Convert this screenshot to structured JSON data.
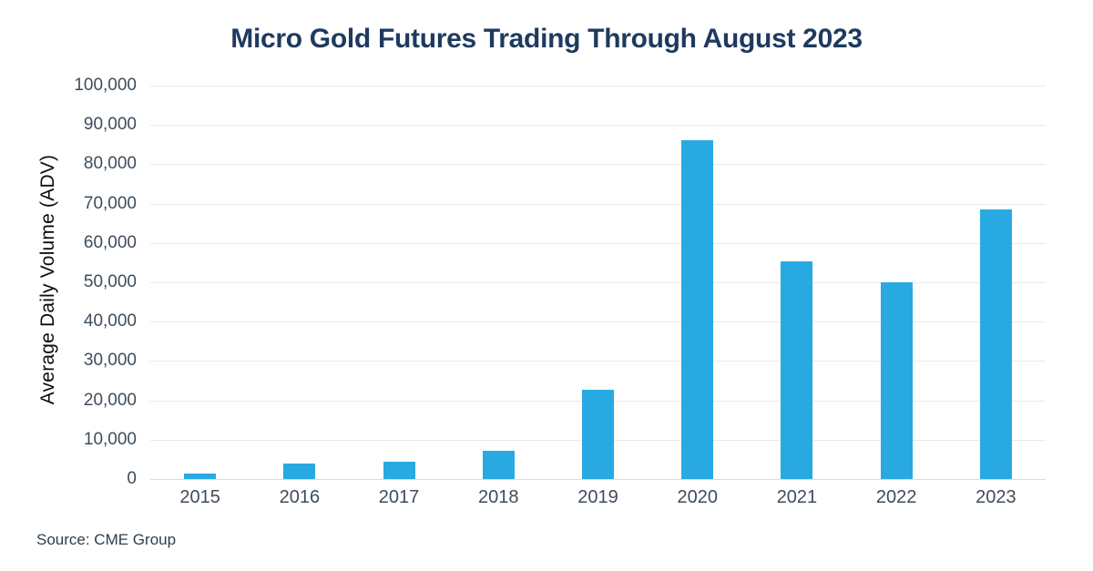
{
  "title": "Micro Gold Futures Trading Through August 2023",
  "source": "Source: CME Group",
  "colors": {
    "bar": "#29A9E1",
    "title": "#1E3A5E",
    "tick_label": "#3E4C5B",
    "y_axis_title": "#0C0C0C",
    "gridline": "#E7E9EC",
    "baseline": "#D8DCE0",
    "background": "#FFFFFF"
  },
  "chart_data": {
    "type": "bar",
    "title": "Micro Gold Futures Trading Through August 2023",
    "categories": [
      "2015",
      "2016",
      "2017",
      "2018",
      "2019",
      "2020",
      "2021",
      "2022",
      "2023"
    ],
    "values": [
      1500,
      3900,
      4500,
      7200,
      22600,
      86000,
      55300,
      49900,
      68600
    ],
    "xlabel": "",
    "ylabel": "Average Daily Volume (ADV)",
    "ylim": [
      0,
      100000
    ],
    "ytick_step": 10000,
    "ytick_labels": [
      "0",
      "10,000",
      "20,000",
      "30,000",
      "40,000",
      "50,000",
      "60,000",
      "70,000",
      "80,000",
      "90,000",
      "100,000"
    ],
    "grid": "horizontal",
    "legend": "none"
  }
}
